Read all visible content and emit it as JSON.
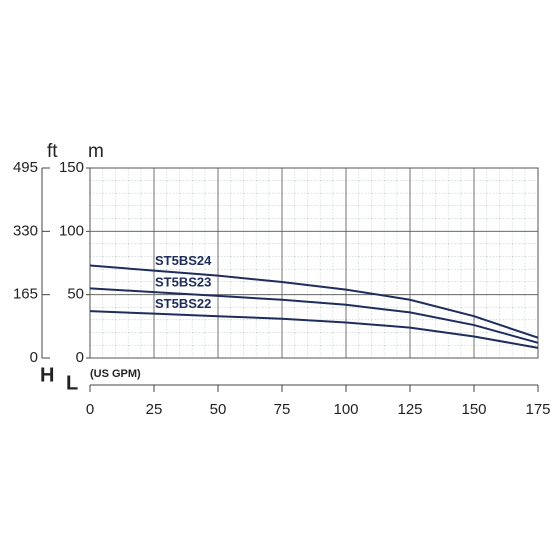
{
  "chart_data": {
    "type": "line",
    "y_unit": "m",
    "y2_unit": "ft",
    "h_label": "H",
    "l_label": "L",
    "x_label": "(US GPM)",
    "x": [
      0,
      25,
      50,
      75,
      100,
      125,
      150,
      175
    ],
    "xlim": [
      0,
      175
    ],
    "xticks": [
      0,
      25,
      50,
      75,
      100,
      125,
      150,
      175
    ],
    "ylim": [
      0,
      150
    ],
    "yticks": [
      0,
      50,
      100,
      150
    ],
    "y2lim": [
      0,
      495
    ],
    "y2ticks": [
      0,
      165,
      330,
      495
    ],
    "grid": true,
    "series": [
      {
        "name": "ST5BS24",
        "color": "#1f2d5c",
        "values": [
          73,
          69,
          65,
          60,
          54,
          46,
          33,
          16
        ]
      },
      {
        "name": "ST5BS23",
        "color": "#1f2d5c",
        "values": [
          55,
          52,
          49,
          46,
          42,
          36,
          26,
          12
        ]
      },
      {
        "name": "ST5BS22",
        "color": "#1f2d5c",
        "values": [
          37,
          35,
          33,
          31,
          28,
          24,
          17,
          8
        ]
      }
    ]
  }
}
